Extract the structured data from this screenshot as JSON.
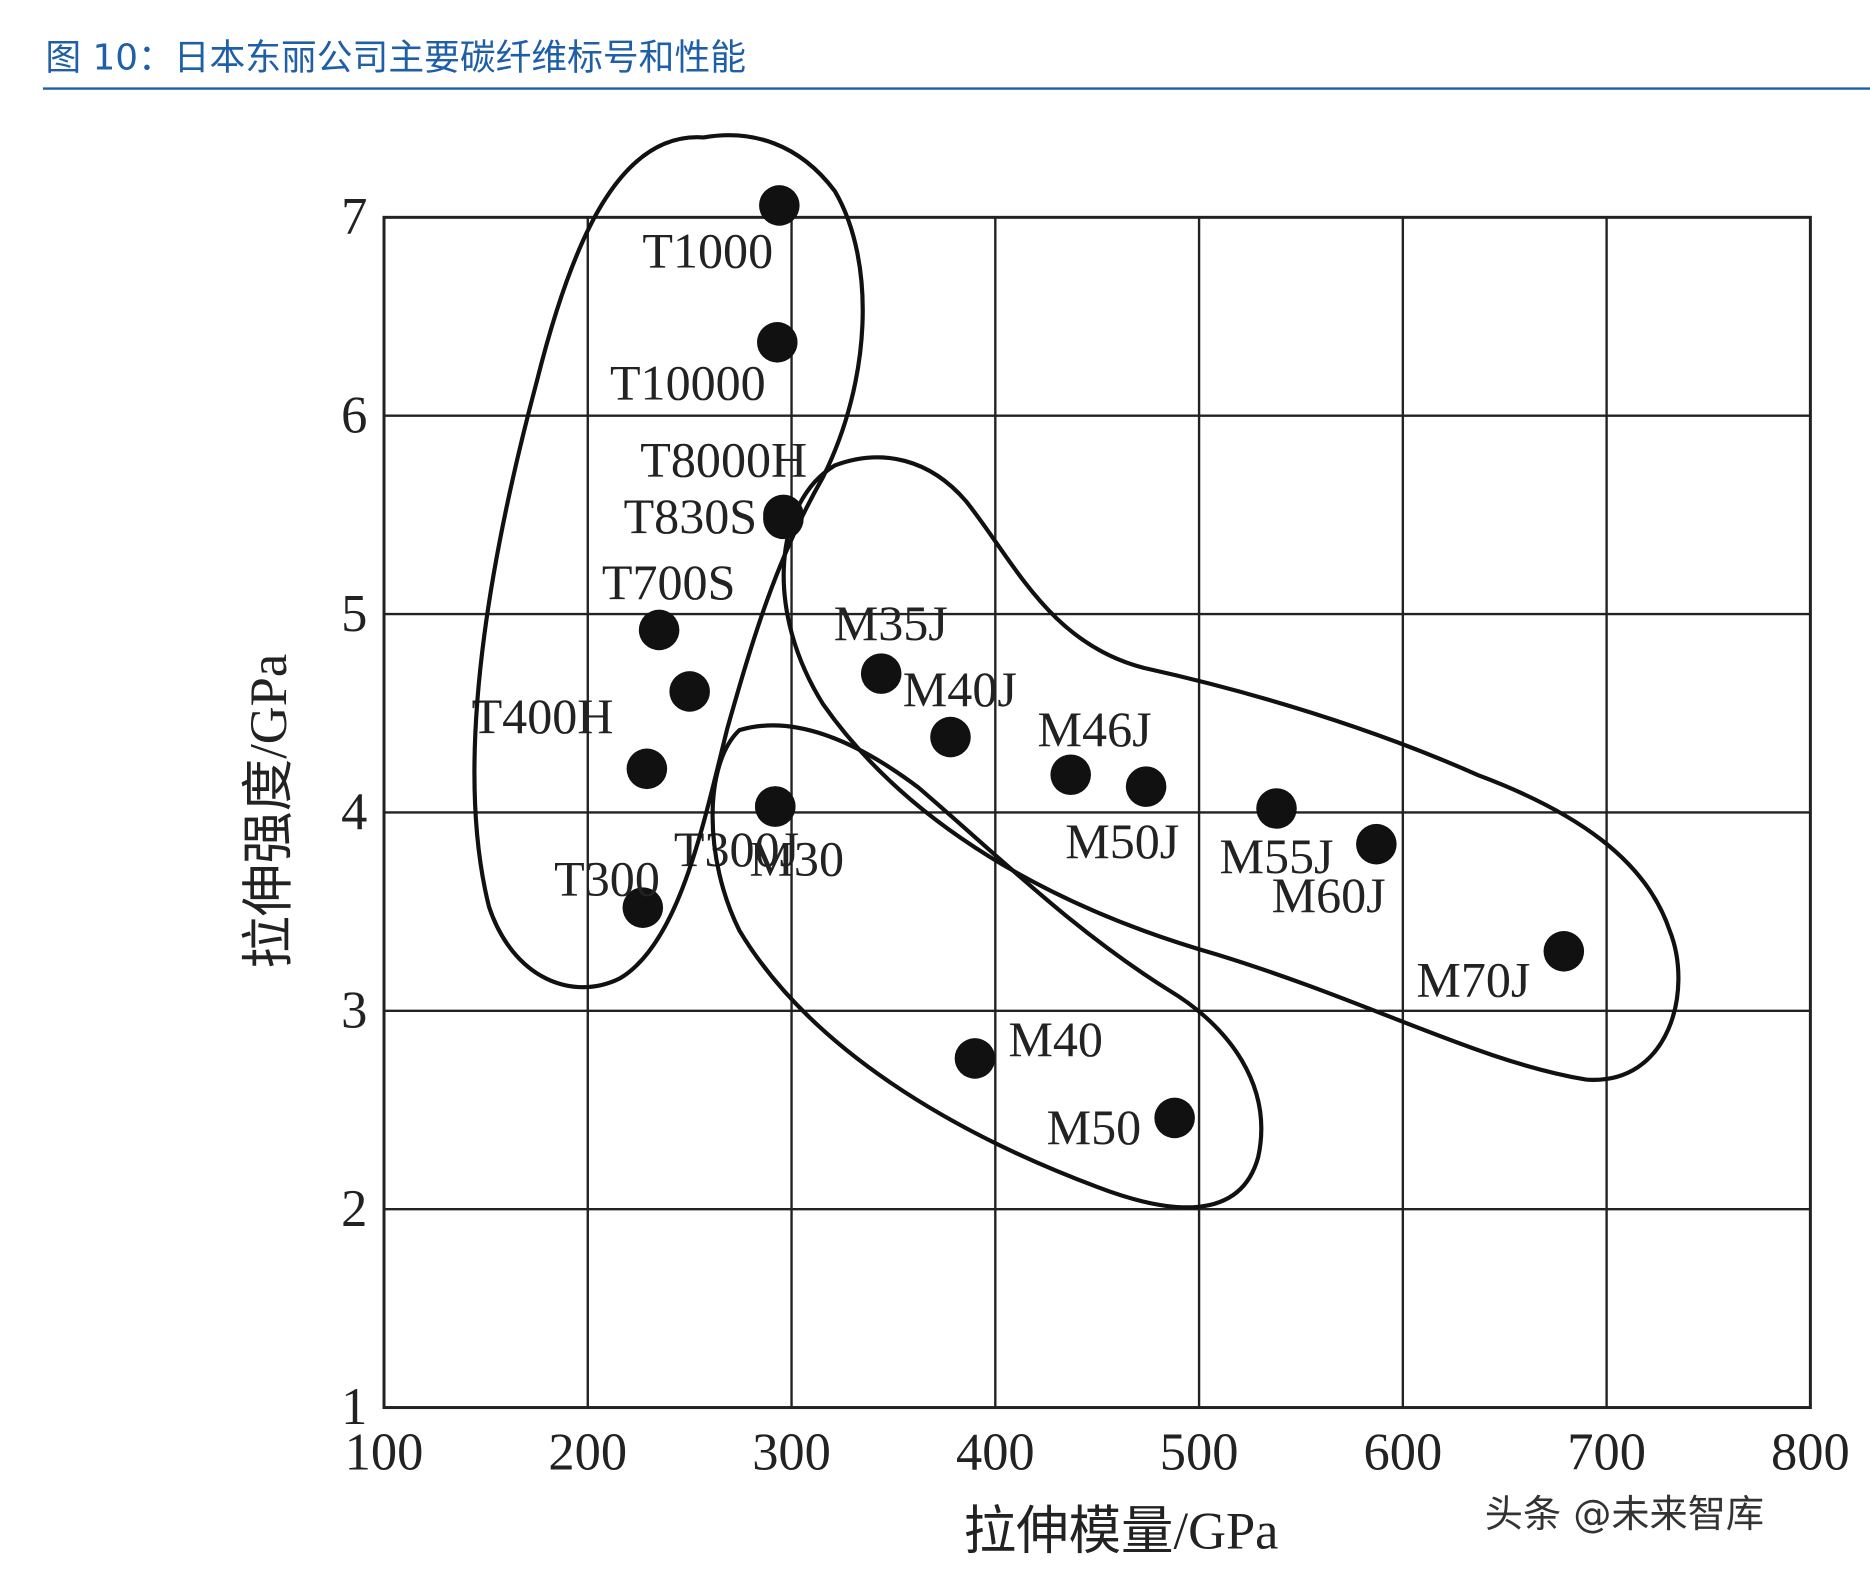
{
  "header": {
    "title": "图 10：日本东丽公司主要碳纤维标号和性能"
  },
  "chart_data": {
    "type": "scatter",
    "x_label": "拉伸模量/GPa",
    "y_label": "拉伸强度/GPa",
    "color": "#111111",
    "grid": true,
    "xlim": [
      100,
      800
    ],
    "ylim": [
      1,
      7
    ],
    "xticks": [
      100,
      200,
      300,
      400,
      500,
      600,
      700,
      800
    ],
    "yticks": [
      1,
      2,
      3,
      4,
      5,
      6,
      7
    ],
    "names": [
      "T1000",
      "T10000",
      "T8000H",
      "T830S",
      "T700S",
      null,
      "T400H",
      "T300J",
      "T300",
      "M30",
      "M35J",
      "M40J",
      "M46J",
      "M50J",
      "M55J",
      "M60J",
      "M70J",
      "M40",
      "M50"
    ],
    "x": [
      294,
      293,
      296,
      296,
      235,
      250,
      229,
      292,
      227,
      292,
      344,
      378,
      437,
      474,
      538,
      587,
      679,
      390,
      488
    ],
    "y": [
      7.06,
      6.37,
      5.5,
      5.48,
      4.92,
      4.61,
      4.22,
      4.03,
      3.52,
      4.03,
      4.7,
      4.38,
      4.19,
      4.13,
      4.02,
      3.84,
      3.3,
      2.76,
      2.46
    ]
  },
  "watermark": "头条 @未来智库"
}
